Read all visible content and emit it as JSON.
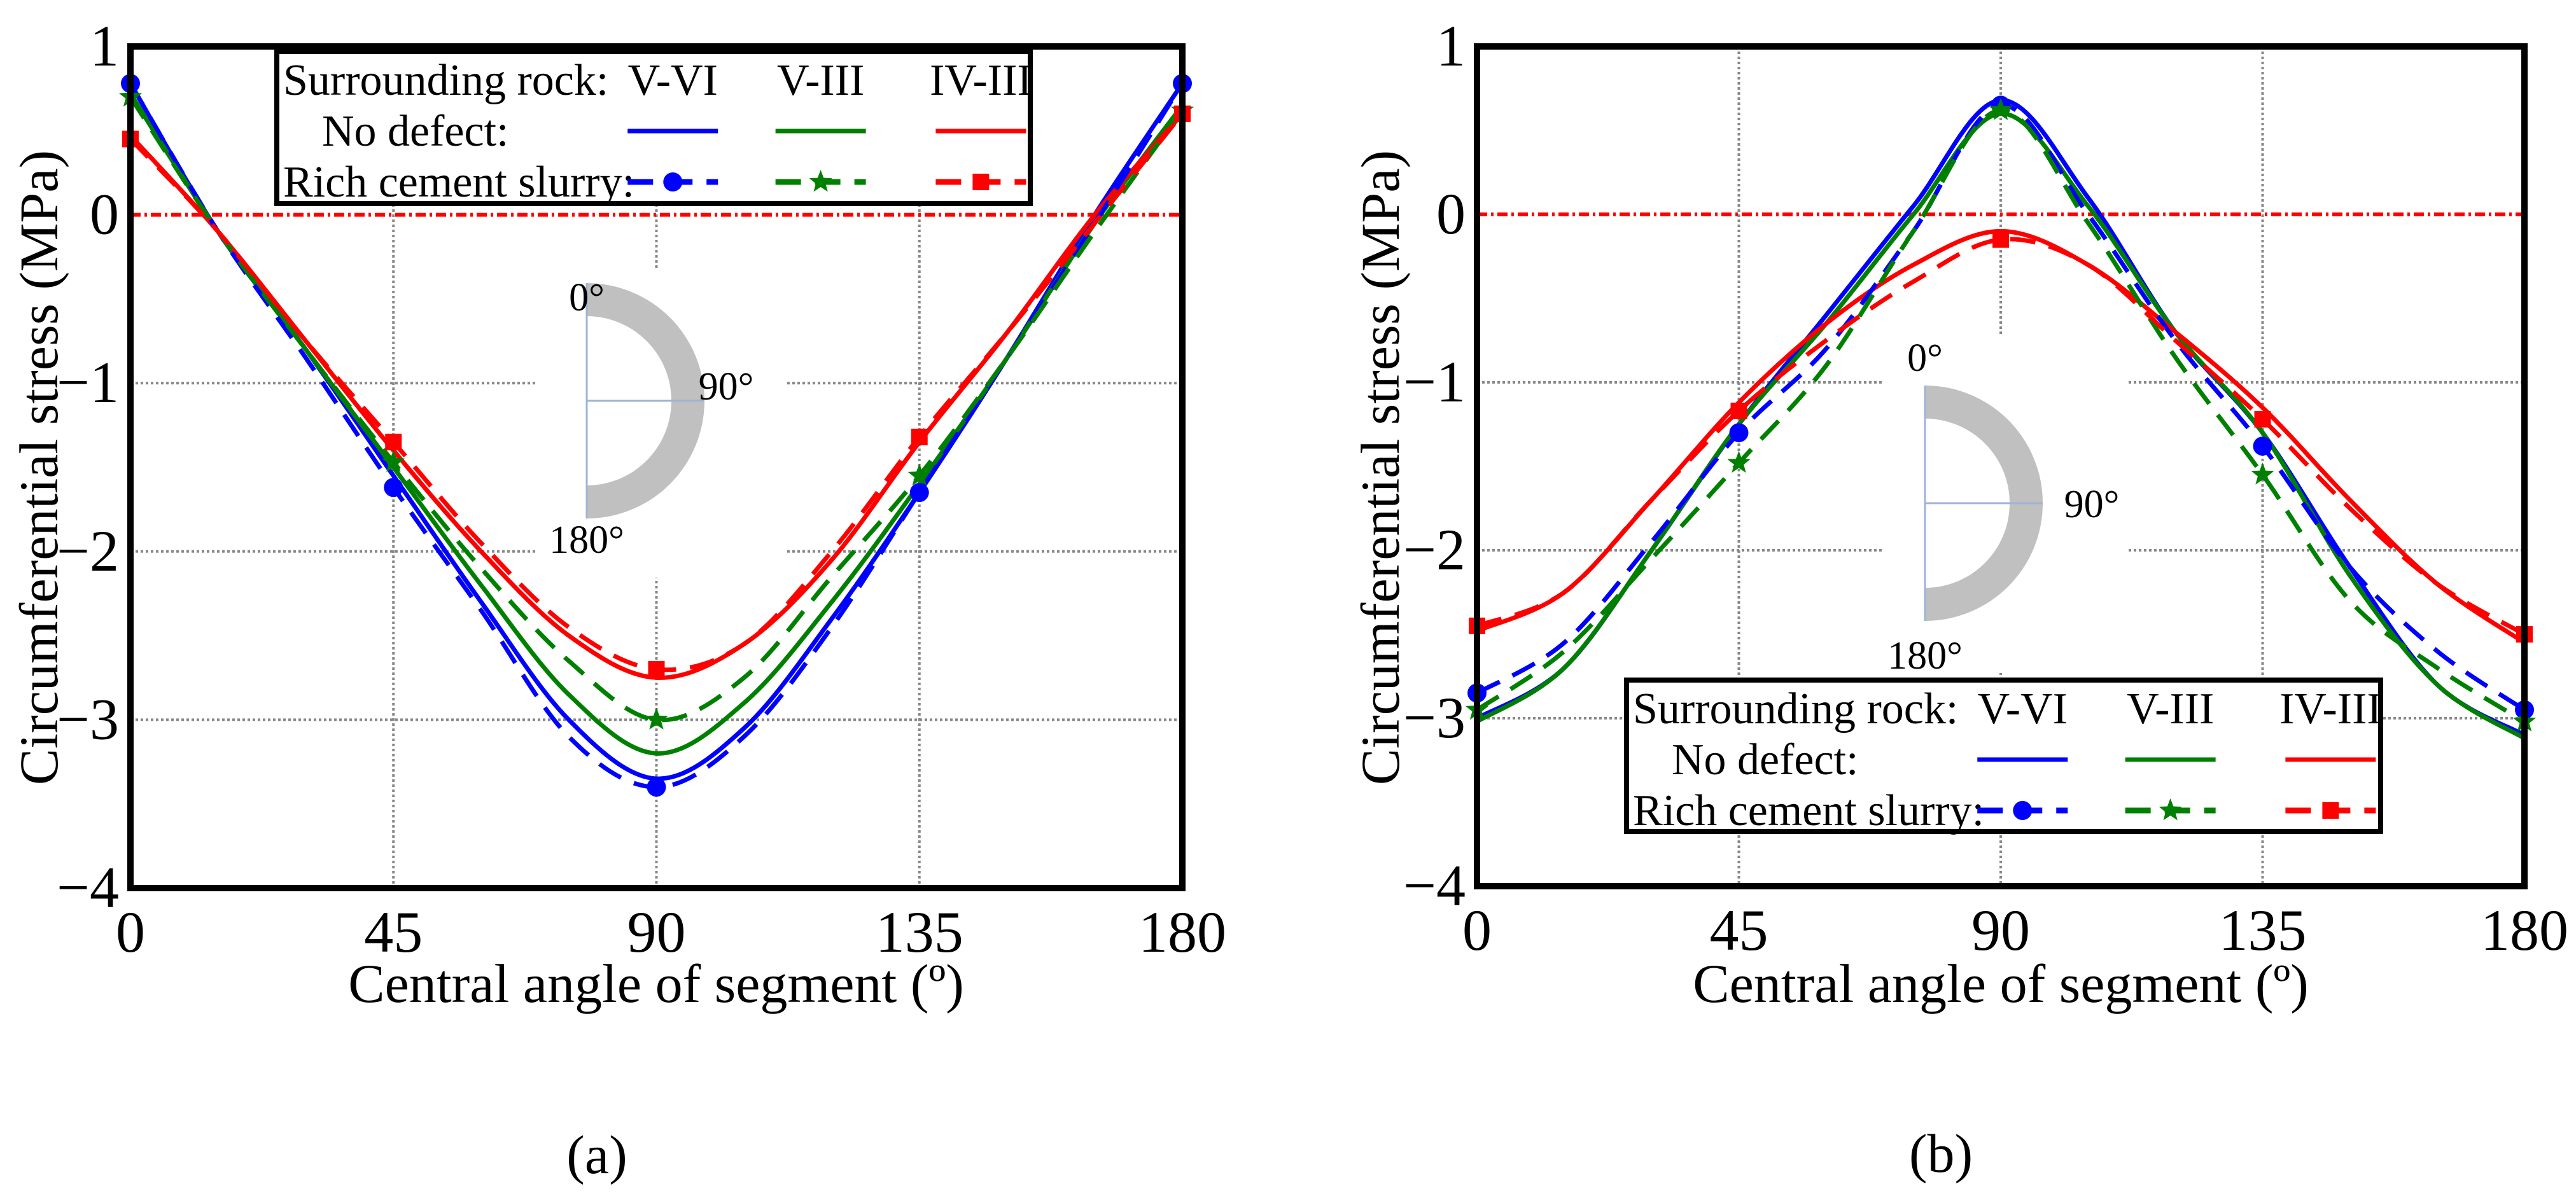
{
  "colors": {
    "V-VI": "#0000ff",
    "V-III": "#008000",
    "IV-III": "#ff0000",
    "zero_line": "#ff0000",
    "grid": "#888888",
    "ring": "#c0c0c0"
  },
  "legend": {
    "header": "Surrounding rock:",
    "row_solid": "No defect:",
    "row_dashed": "Rich cement slurry:",
    "columns": [
      "V-VI",
      "V-III",
      "IV-III"
    ]
  },
  "inset_labels": [
    "0°",
    "90°",
    "180°"
  ],
  "chart_data": [
    {
      "type": "line",
      "panel_label": "(a)",
      "xlabel": "Central angle of segment (º)",
      "ylabel": "Circumferential stress (MPa)",
      "xlim": [
        0,
        180
      ],
      "ylim": [
        -4,
        1
      ],
      "xticks": [
        0,
        45,
        90,
        135,
        180
      ],
      "yticks": [
        1,
        0,
        -1,
        -2,
        -3,
        -4
      ],
      "ytick_labels": [
        "1",
        "0",
        "−1",
        "−2",
        "−3",
        "−4"
      ],
      "grid": true,
      "legend_position": "top-center",
      "x": [
        0,
        15,
        30,
        45,
        60,
        75,
        90,
        105,
        120,
        135,
        150,
        165,
        180
      ],
      "marker_x": [
        0,
        45,
        90,
        135,
        180
      ],
      "series": [
        {
          "name": "No defect V-VI",
          "rock": "V-VI",
          "style": "solid",
          "values": [
            0.78,
            -0.1,
            -0.8,
            -1.55,
            -2.3,
            -3.0,
            -3.35,
            -3.05,
            -2.4,
            -1.65,
            -0.85,
            0.0,
            0.78
          ]
        },
        {
          "name": "No defect V-III",
          "rock": "V-III",
          "style": "solid",
          "values": [
            0.72,
            -0.1,
            -0.8,
            -1.5,
            -2.2,
            -2.85,
            -3.2,
            -2.9,
            -2.3,
            -1.6,
            -0.85,
            -0.05,
            0.65
          ]
        },
        {
          "name": "No defect IV-III",
          "rock": "IV-III",
          "style": "solid",
          "values": [
            0.47,
            -0.1,
            -0.75,
            -1.4,
            -2.0,
            -2.5,
            -2.75,
            -2.55,
            -2.05,
            -1.35,
            -0.7,
            0.0,
            0.6
          ]
        },
        {
          "name": "Rich cement slurry V-VI",
          "rock": "V-VI",
          "style": "dashed",
          "marker": "circle",
          "values": [
            0.78,
            -0.1,
            -0.85,
            -1.62,
            -2.35,
            -3.1,
            -3.4,
            -3.1,
            -2.45,
            -1.65,
            -0.85,
            -0.05,
            0.78
          ]
        },
        {
          "name": "Rich cement slurry V-III",
          "rock": "V-III",
          "style": "dashed",
          "marker": "star",
          "values": [
            0.7,
            -0.1,
            -0.8,
            -1.47,
            -2.1,
            -2.65,
            -3.0,
            -2.75,
            -2.15,
            -1.55,
            -0.85,
            -0.1,
            0.62
          ]
        },
        {
          "name": "Rich cement slurry IV-III",
          "rock": "IV-III",
          "style": "dashed",
          "marker": "square",
          "values": [
            0.45,
            -0.1,
            -0.75,
            -1.35,
            -1.95,
            -2.45,
            -2.7,
            -2.55,
            -2.0,
            -1.32,
            -0.7,
            -0.05,
            0.6
          ]
        }
      ]
    },
    {
      "type": "line",
      "panel_label": "(b)",
      "xlabel": "Central angle of segment (º)",
      "ylabel": "Circumferential stress (MPa)",
      "xlim": [
        0,
        180
      ],
      "ylim": [
        -4,
        1
      ],
      "xticks": [
        0,
        45,
        90,
        135,
        180
      ],
      "yticks": [
        1,
        0,
        -1,
        -2,
        -3,
        -4
      ],
      "ytick_labels": [
        "1",
        "0",
        "−1",
        "−2",
        "−3",
        "−4"
      ],
      "grid": true,
      "legend_position": "bottom-center",
      "x": [
        0,
        15,
        30,
        45,
        60,
        75,
        90,
        105,
        120,
        135,
        150,
        165,
        180
      ],
      "marker_x": [
        0,
        45,
        90,
        135,
        180
      ],
      "series": [
        {
          "name": "No defect V-VI",
          "rock": "V-VI",
          "style": "solid",
          "values": [
            -3.0,
            -2.7,
            -2.0,
            -1.25,
            -0.6,
            0.05,
            0.68,
            0.1,
            -0.7,
            -1.3,
            -2.1,
            -2.8,
            -3.1
          ]
        },
        {
          "name": "No defect V-III",
          "rock": "V-III",
          "style": "solid",
          "values": [
            -3.02,
            -2.7,
            -2.0,
            -1.25,
            -0.65,
            0.0,
            0.6,
            0.05,
            -0.7,
            -1.3,
            -2.15,
            -2.8,
            -3.12
          ]
        },
        {
          "name": "No defect IV-III",
          "rock": "IV-III",
          "style": "solid",
          "values": [
            -2.48,
            -2.25,
            -1.7,
            -1.12,
            -0.65,
            -0.3,
            -0.1,
            -0.3,
            -0.7,
            -1.15,
            -1.7,
            -2.2,
            -2.55
          ]
        },
        {
          "name": "Rich cement slurry V-VI",
          "rock": "V-VI",
          "style": "dashed",
          "marker": "circle",
          "values": [
            -2.85,
            -2.55,
            -1.95,
            -1.3,
            -0.8,
            -0.1,
            0.65,
            0.0,
            -0.75,
            -1.38,
            -2.1,
            -2.6,
            -2.95
          ]
        },
        {
          "name": "Rich cement slurry V-III",
          "rock": "V-III",
          "style": "dashed",
          "marker": "star",
          "values": [
            -2.95,
            -2.6,
            -2.05,
            -1.48,
            -0.9,
            -0.1,
            0.62,
            -0.05,
            -0.85,
            -1.55,
            -2.3,
            -2.7,
            -3.02
          ]
        },
        {
          "name": "Rich cement slurry IV-III",
          "rock": "IV-III",
          "style": "dashed",
          "marker": "square",
          "values": [
            -2.45,
            -2.25,
            -1.7,
            -1.17,
            -0.75,
            -0.4,
            -0.15,
            -0.3,
            -0.75,
            -1.22,
            -1.75,
            -2.2,
            -2.5
          ]
        }
      ]
    }
  ]
}
